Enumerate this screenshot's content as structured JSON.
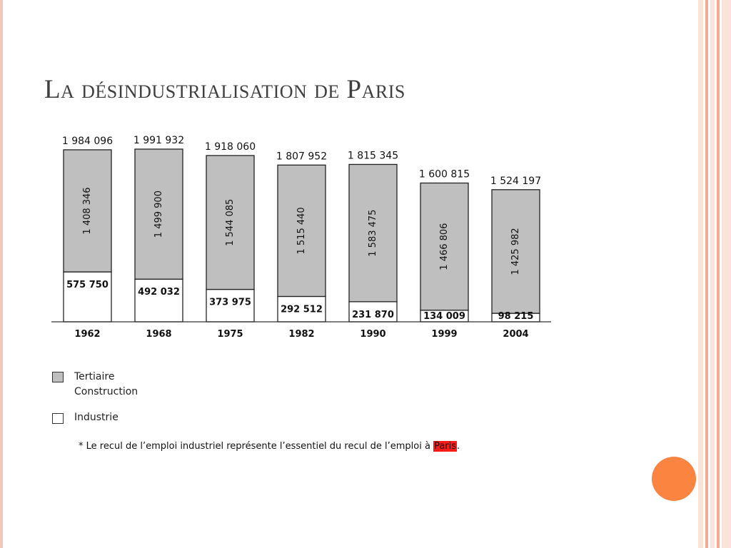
{
  "slide": {
    "title": "La désindustrialisation de Paris",
    "accent_color": "#fb8440",
    "border_colors": [
      "#f2c7b9",
      "#f7a98f",
      "#fbe3da"
    ]
  },
  "legend": {
    "items": [
      {
        "label_line1": "Tertiaire",
        "label_line2": "Construction",
        "color": "#bfbfbf"
      },
      {
        "label_line1": "Industrie",
        "label_line2": "",
        "color": "#ffffff"
      }
    ]
  },
  "footnote": {
    "prefix": "* Le recul de l’emploi industriel représente l’essentiel du recul de l’emploi à ",
    "highlight": "Paris",
    "suffix": ".",
    "highlight_color": "#ff1a1a"
  },
  "chart_data": {
    "type": "bar",
    "stacked": true,
    "categories": [
      "1962",
      "1968",
      "1975",
      "1982",
      "1990",
      "1999",
      "2004"
    ],
    "totals": [
      "1 984 096",
      "1 991 932",
      "1 918 060",
      "1 807 952",
      "1 815 345",
      "1 600 815",
      "1 524 197"
    ],
    "series": [
      {
        "name": "Industrie",
        "color": "#ffffff",
        "values": [
          575750,
          492032,
          373975,
          292512,
          231870,
          134009,
          98215
        ],
        "labels": [
          "575 750",
          "492 032",
          "373 975",
          "292 512",
          "231 870",
          "134 009",
          "98 215"
        ]
      },
      {
        "name": "Tertiaire Construction",
        "color": "#bfbfbf",
        "values": [
          1408346,
          1499900,
          1544085,
          1515440,
          1583475,
          1466806,
          1425982
        ],
        "labels": [
          "1 408 346",
          "1 499 900",
          "1 544 085",
          "1 515 440",
          "1 583 475",
          "1 466 806",
          "1 425 982"
        ]
      }
    ],
    "title": "",
    "xlabel": "",
    "ylabel": "",
    "ylim": [
      0,
      2000000
    ],
    "grid": false,
    "legend_position": "bottom-left"
  }
}
